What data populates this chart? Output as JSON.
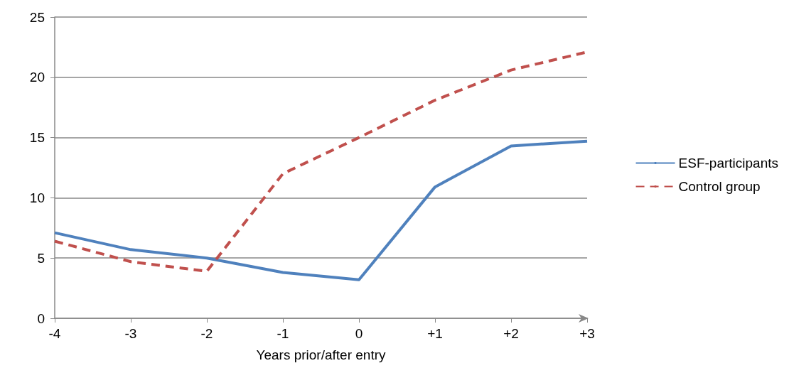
{
  "chart_data": {
    "type": "line",
    "xlabel": "Years prior/after entry",
    "categories": [
      "-4",
      "-3",
      "-2",
      "-1",
      "0",
      "+1",
      "+2",
      "+3"
    ],
    "series": [
      {
        "name": "ESF-participants",
        "color": "#4f81bd",
        "line_style": "solid",
        "values": [
          7.1,
          5.7,
          5.0,
          3.8,
          3.2,
          10.9,
          14.3,
          14.7
        ]
      },
      {
        "name": "Control group",
        "color": "#c0504d",
        "line_style": "dashed",
        "values": [
          6.4,
          4.7,
          3.9,
          12.0,
          15.0,
          18.1,
          20.6,
          22.1
        ]
      }
    ],
    "ylim": [
      0,
      25
    ],
    "yticks": [
      0,
      5,
      10,
      15,
      20,
      25
    ],
    "grid": "y",
    "legend": "right",
    "marker": "none"
  }
}
